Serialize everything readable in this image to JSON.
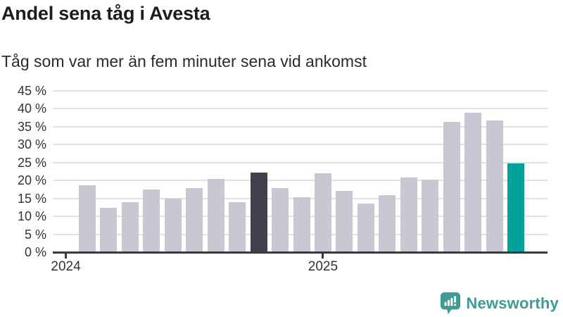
{
  "header": {
    "title": "Andel sena tåg i Avesta",
    "subtitle": "Tåg som var mer än fem minuter sena vid ankomst"
  },
  "footer": {
    "brand": "Newsworthy",
    "logo_icon": "speech-bubble-with-bar-chart-and-exclamation"
  },
  "colors": {
    "bar_default": "#c9c7d1",
    "bar_dark": "#433f4e",
    "bar_accent": "#00a19a",
    "gridline": "#e2e1e4",
    "axis": "#3a3a3c",
    "title_text": "#1d1d1b",
    "subtitle_text": "#2b2b2b",
    "tick_text": "#333333",
    "brand_teal": "#3e9b95"
  },
  "chart_data": {
    "type": "bar",
    "title": "Andel sena tåg i Avesta",
    "subtitle": "Tåg som var mer än fem minuter sena vid ankomst",
    "xlabel": "",
    "ylabel": "",
    "unit": "%",
    "ylim": [
      0,
      45
    ],
    "grid": true,
    "legend": "none",
    "categories": [
      "2024-02",
      "2024-03",
      "2024-04",
      "2024-05",
      "2024-06",
      "2024-07",
      "2024-08",
      "2024-09",
      "2024-10",
      "2024-11",
      "2024-12",
      "2025-01",
      "2025-02",
      "2025-03",
      "2025-04",
      "2025-05",
      "2025-06",
      "2025-07",
      "2025-08",
      "2025-09",
      "2025-10"
    ],
    "values": [
      18.7,
      12.3,
      14.0,
      17.5,
      15.0,
      17.8,
      20.5,
      13.9,
      22.2,
      17.8,
      15.3,
      22.0,
      17.1,
      13.5,
      15.9,
      20.9,
      20.2,
      36.4,
      38.9,
      36.8,
      24.8
    ],
    "highlight": {
      "dark_bar_index": 8,
      "accent_bar_index": 20
    },
    "y_ticks": [
      {
        "value": 45,
        "label": "45 %"
      },
      {
        "value": 40,
        "label": "40 %"
      },
      {
        "value": 35,
        "label": "35 %"
      },
      {
        "value": 30,
        "label": "30 %"
      },
      {
        "value": 25,
        "label": "25 %"
      },
      {
        "value": 20,
        "label": "20 %"
      },
      {
        "value": 15,
        "label": "15 %"
      },
      {
        "value": 10,
        "label": "10 %"
      },
      {
        "value": 5,
        "label": "5 %"
      },
      {
        "value": 0,
        "label": "0 %"
      }
    ],
    "x_ticks": [
      {
        "label": "2024",
        "bar_offset": -1
      },
      {
        "label": "2025",
        "bar_offset": 11
      }
    ]
  }
}
